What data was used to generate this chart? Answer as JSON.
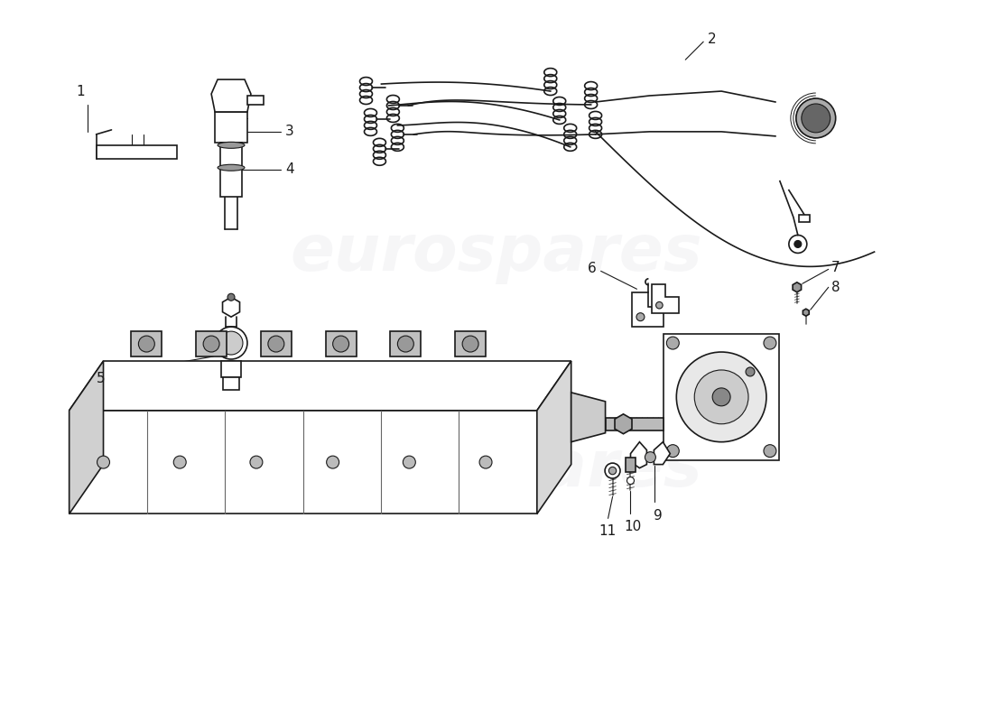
{
  "bg_color": "#ffffff",
  "line_color": "#1a1a1a",
  "watermark_color": "#c8c8d0",
  "watermark_text": "eurospares",
  "lw_main": 1.2,
  "lw_thin": 0.8
}
